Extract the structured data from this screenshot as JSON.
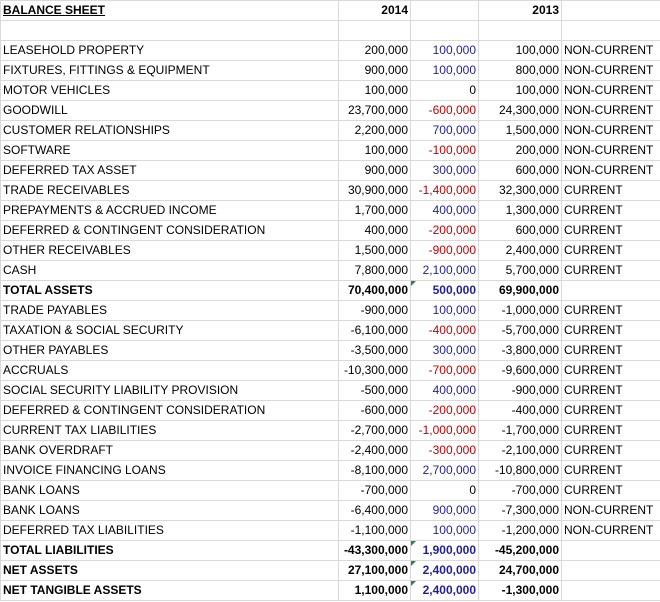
{
  "sheet": {
    "title": "BALANCE SHEET",
    "col_2014": "2014",
    "col_2013": "2013",
    "rows": [
      {
        "label": "LEASEHOLD PROPERTY",
        "y2014": "200,000",
        "change": "100,000",
        "y2013": "100,000",
        "class": "NON-CURRENT",
        "bold": false,
        "sign": "pos",
        "flag": false
      },
      {
        "label": "FIXTURES, FITTINGS & EQUIPMENT",
        "y2014": "900,000",
        "change": "100,000",
        "y2013": "800,000",
        "class": "NON-CURRENT",
        "bold": false,
        "sign": "pos",
        "flag": false
      },
      {
        "label": "MOTOR VEHICLES",
        "y2014": "100,000",
        "change": "0",
        "y2013": "100,000",
        "class": "NON-CURRENT",
        "bold": false,
        "sign": "zero",
        "flag": false
      },
      {
        "label": "GOODWILL",
        "y2014": "23,700,000",
        "change": "-600,000",
        "y2013": "24,300,000",
        "class": "NON-CURRENT",
        "bold": false,
        "sign": "neg",
        "flag": false
      },
      {
        "label": "CUSTOMER RELATIONSHIPS",
        "y2014": "2,200,000",
        "change": "700,000",
        "y2013": "1,500,000",
        "class": "NON-CURRENT",
        "bold": false,
        "sign": "pos",
        "flag": false
      },
      {
        "label": "SOFTWARE",
        "y2014": "100,000",
        "change": "-100,000",
        "y2013": "200,000",
        "class": "NON-CURRENT",
        "bold": false,
        "sign": "neg",
        "flag": false
      },
      {
        "label": "DEFERRED TAX ASSET",
        "y2014": "900,000",
        "change": "300,000",
        "y2013": "600,000",
        "class": "NON-CURRENT",
        "bold": false,
        "sign": "pos",
        "flag": false
      },
      {
        "label": "TRADE RECEIVABLES",
        "y2014": "30,900,000",
        "change": "-1,400,000",
        "y2013": "32,300,000",
        "class": "CURRENT",
        "bold": false,
        "sign": "neg",
        "flag": false
      },
      {
        "label": "PREPAYMENTS & ACCRUED INCOME",
        "y2014": "1,700,000",
        "change": "400,000",
        "y2013": "1,300,000",
        "class": "CURRENT",
        "bold": false,
        "sign": "pos",
        "flag": false
      },
      {
        "label": "DEFERRED & CONTINGENT CONSIDERATION",
        "y2014": "400,000",
        "change": "-200,000",
        "y2013": "600,000",
        "class": "CURRENT",
        "bold": false,
        "sign": "neg",
        "flag": false
      },
      {
        "label": "OTHER RECEIVABLES",
        "y2014": "1,500,000",
        "change": "-900,000",
        "y2013": "2,400,000",
        "class": "CURRENT",
        "bold": false,
        "sign": "neg",
        "flag": false
      },
      {
        "label": "CASH",
        "y2014": "7,800,000",
        "change": "2,100,000",
        "y2013": "5,700,000",
        "class": "CURRENT",
        "bold": false,
        "sign": "pos",
        "flag": false
      },
      {
        "label": "TOTAL ASSETS",
        "y2014": "70,400,000",
        "change": "500,000",
        "y2013": "69,900,000",
        "class": "",
        "bold": true,
        "sign": "pos",
        "flag": true
      },
      {
        "label": "TRADE PAYABLES",
        "y2014": "-900,000",
        "change": "100,000",
        "y2013": "-1,000,000",
        "class": "CURRENT",
        "bold": false,
        "sign": "pos",
        "flag": false
      },
      {
        "label": "TAXATION & SOCIAL SECURITY",
        "y2014": "-6,100,000",
        "change": "-400,000",
        "y2013": "-5,700,000",
        "class": "CURRENT",
        "bold": false,
        "sign": "neg",
        "flag": false
      },
      {
        "label": "OTHER PAYABLES",
        "y2014": "-3,500,000",
        "change": "300,000",
        "y2013": "-3,800,000",
        "class": "CURRENT",
        "bold": false,
        "sign": "pos",
        "flag": false
      },
      {
        "label": "ACCRUALS",
        "y2014": "-10,300,000",
        "change": "-700,000",
        "y2013": "-9,600,000",
        "class": "CURRENT",
        "bold": false,
        "sign": "neg",
        "flag": false
      },
      {
        "label": "SOCIAL SECURITY LIABILITY PROVISION",
        "y2014": "-500,000",
        "change": "400,000",
        "y2013": "-900,000",
        "class": "CURRENT",
        "bold": false,
        "sign": "pos",
        "flag": false
      },
      {
        "label": "DEFERRED & CONTINGENT CONSIDERATION",
        "y2014": "-600,000",
        "change": "-200,000",
        "y2013": "-400,000",
        "class": "CURRENT",
        "bold": false,
        "sign": "neg",
        "flag": false
      },
      {
        "label": "CURRENT TAX LIABILITIES",
        "y2014": "-2,700,000",
        "change": "-1,000,000",
        "y2013": "-1,700,000",
        "class": "CURRENT",
        "bold": false,
        "sign": "neg",
        "flag": false
      },
      {
        "label": "BANK OVERDRAFT",
        "y2014": "-2,400,000",
        "change": "-300,000",
        "y2013": "-2,100,000",
        "class": "CURRENT",
        "bold": false,
        "sign": "neg",
        "flag": false
      },
      {
        "label": "INVOICE FINANCING LOANS",
        "y2014": "-8,100,000",
        "change": "2,700,000",
        "y2013": "-10,800,000",
        "class": "CURRENT",
        "bold": false,
        "sign": "pos",
        "flag": false
      },
      {
        "label": "BANK LOANS",
        "y2014": "-700,000",
        "change": "0",
        "y2013": "-700,000",
        "class": "CURRENT",
        "bold": false,
        "sign": "zero",
        "flag": false
      },
      {
        "label": "BANK LOANS",
        "y2014": "-6,400,000",
        "change": "900,000",
        "y2013": "-7,300,000",
        "class": "NON-CURRENT",
        "bold": false,
        "sign": "pos",
        "flag": false
      },
      {
        "label": "DEFERRED TAX LIABILITIES",
        "y2014": "-1,100,000",
        "change": "100,000",
        "y2013": "-1,200,000",
        "class": "NON-CURRENT",
        "bold": false,
        "sign": "pos",
        "flag": false
      },
      {
        "label": "TOTAL LIABILITIES",
        "y2014": "-43,300,000",
        "change": "1,900,000",
        "y2013": "-45,200,000",
        "class": "",
        "bold": true,
        "sign": "pos",
        "flag": true
      },
      {
        "label": "NET ASSETS",
        "y2014": "27,100,000",
        "change": "2,400,000",
        "y2013": "24,700,000",
        "class": "",
        "bold": true,
        "sign": "pos",
        "flag": true
      },
      {
        "label": "NET TANGIBLE ASSETS",
        "y2014": "1,100,000",
        "change": "2,400,000",
        "y2013": "-1,300,000",
        "class": "",
        "bold": true,
        "sign": "pos",
        "flag": true
      }
    ]
  },
  "colors": {
    "increase": "#1f1f9a",
    "decrease": "#c00000",
    "grid": "#d9d9d9",
    "flag": "#1f8f3a"
  }
}
